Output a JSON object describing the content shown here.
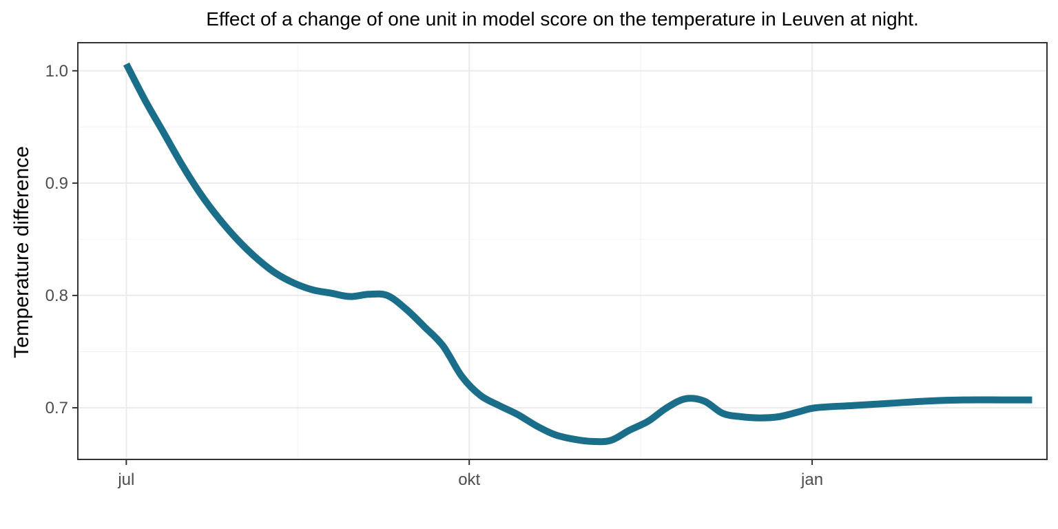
{
  "chart_data": {
    "type": "line",
    "title": "Effect of a change of one unit in model score on the temperature in Leuven at night.",
    "xlabel": "",
    "ylabel": "Temperature difference",
    "x_ticks": [
      {
        "date": "2021-07-01",
        "label": "jul"
      },
      {
        "date": "2021-10-01",
        "label": "okt"
      },
      {
        "date": "2022-01-01",
        "label": "jan"
      }
    ],
    "y_ticks": [
      0.7,
      0.8,
      0.9,
      1.0
    ],
    "y_tick_labels": [
      "0.7",
      "0.8",
      "0.9",
      "1.0"
    ],
    "xlim": [
      "2021-06-18",
      "2022-03-05"
    ],
    "ylim": [
      0.654,
      1.025
    ],
    "grid": true,
    "line_color": "#1a6e8a",
    "series": [
      {
        "x": [
          "2021-07-01",
          "2021-07-06",
          "2021-07-11",
          "2021-07-16",
          "2021-07-21",
          "2021-07-26",
          "2021-07-31",
          "2021-08-05",
          "2021-08-10",
          "2021-08-15",
          "2021-08-20",
          "2021-08-25",
          "2021-08-30",
          "2021-09-04",
          "2021-09-09",
          "2021-09-14",
          "2021-09-19",
          "2021-09-24",
          "2021-09-29",
          "2021-10-04",
          "2021-10-09",
          "2021-10-14",
          "2021-10-19",
          "2021-10-24",
          "2021-10-29",
          "2021-11-03",
          "2021-11-08",
          "2021-11-13",
          "2021-11-18",
          "2021-11-23",
          "2021-11-28",
          "2021-12-03",
          "2021-12-08",
          "2021-12-13",
          "2021-12-18",
          "2021-12-23",
          "2021-12-28",
          "2022-01-02",
          "2022-01-12",
          "2022-01-22",
          "2022-02-01",
          "2022-02-11",
          "2022-02-21",
          "2022-03-01"
        ],
        "values": [
          1.006,
          0.974,
          0.945,
          0.916,
          0.89,
          0.868,
          0.849,
          0.833,
          0.82,
          0.811,
          0.805,
          0.802,
          0.799,
          0.801,
          0.8,
          0.788,
          0.772,
          0.755,
          0.728,
          0.711,
          0.702,
          0.694,
          0.684,
          0.676,
          0.672,
          0.67,
          0.671,
          0.68,
          0.688,
          0.7,
          0.708,
          0.706,
          0.695,
          0.692,
          0.691,
          0.692,
          0.696,
          0.7,
          0.702,
          0.704,
          0.706,
          0.707,
          0.707,
          0.707
        ]
      }
    ]
  }
}
